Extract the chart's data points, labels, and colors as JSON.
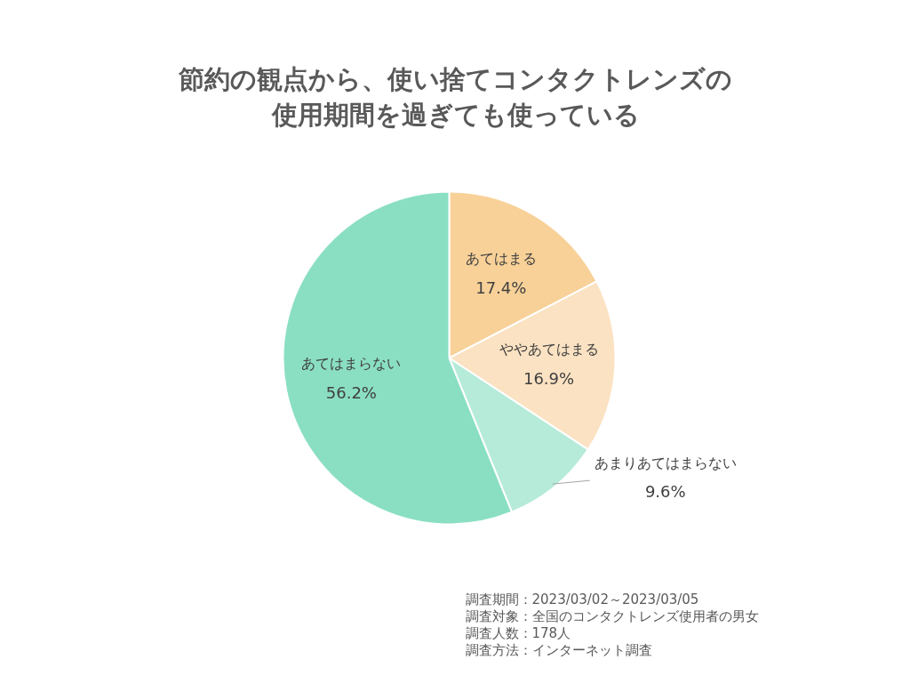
{
  "chart_data": {
    "type": "pie",
    "title": "節約の観点から、使い捨てコンタクトレンズの使用期間を過ぎても使っている",
    "categories": [
      "あてはまる",
      "ややあてはまる",
      "あまりあてはまらない",
      "あてはまらない"
    ],
    "values": [
      17.4,
      16.9,
      9.6,
      56.2
    ],
    "colors": [
      "#f8d198",
      "#fbe2c2",
      "#b6ebd9",
      "#8adfc3"
    ],
    "value_labels": [
      "17.4%",
      "16.9%",
      "9.6%",
      "56.2%"
    ],
    "annotations": [
      "調査期間：2023/03/02～2023/03/05",
      "調査対象：全国のコンタクトレンズ使用者の男女",
      "調査人数：178人",
      "調査方法：インターネット調査"
    ]
  }
}
